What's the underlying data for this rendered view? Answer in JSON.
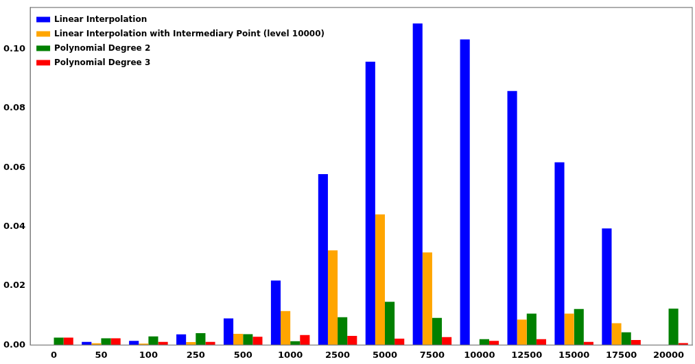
{
  "chart_data": {
    "type": "bar",
    "categories": [
      "0",
      "50",
      "100",
      "250",
      "500",
      "1000",
      "2500",
      "5000",
      "7500",
      "10000",
      "12500",
      "15000",
      "17500",
      "20000"
    ],
    "series": [
      {
        "name": "Linear Interpolation",
        "color": "#0000ff",
        "values": [
          0,
          0.0011,
          0.0014,
          0.0036,
          0.009,
          0.0218,
          0.0577,
          0.0957,
          0.1086,
          0.1032,
          0.0858,
          0.0617,
          0.0394,
          0
        ]
      },
      {
        "name": "Linear Interpolation with Intermediary Point (level 10000)",
        "color": "#ffa500",
        "values": [
          0,
          0.0006,
          0.0005,
          0.001,
          0.0038,
          0.0115,
          0.032,
          0.0441,
          0.0313,
          0,
          0.0086,
          0.0106,
          0.0074,
          0
        ]
      },
      {
        "name": "Polynomial Degree 2",
        "color": "#008000",
        "values": [
          0.0025,
          0.0023,
          0.0029,
          0.004,
          0.0037,
          0.0013,
          0.0094,
          0.0146,
          0.0092,
          0.002,
          0.0106,
          0.0122,
          0.0043,
          0.0123
        ]
      },
      {
        "name": "Polynomial Degree 3",
        "color": "#ff0000",
        "values": [
          0.0025,
          0.0023,
          0.0011,
          0.0011,
          0.0028,
          0.0034,
          0.0031,
          0.0022,
          0.0027,
          0.0014,
          0.002,
          0.0011,
          0.0017,
          0.0007
        ]
      }
    ],
    "ylim": [
      0,
      0.114
    ],
    "yticks": [
      {
        "value": 0,
        "label": "0.00"
      },
      {
        "value": 0.02,
        "label": "0.02"
      },
      {
        "value": 0.04,
        "label": "0.04"
      },
      {
        "value": 0.06,
        "label": "0.06"
      },
      {
        "value": 0.08,
        "label": "0.08"
      },
      {
        "value": 0.1,
        "label": "0.10"
      }
    ],
    "grid": false,
    "legend": "top left"
  }
}
